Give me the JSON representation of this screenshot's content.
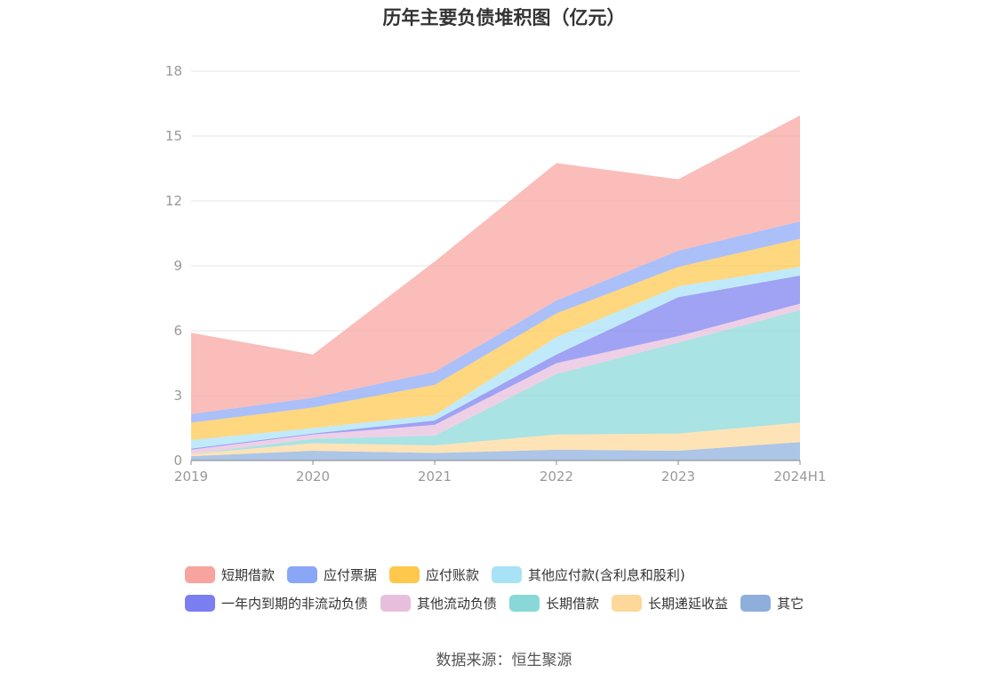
{
  "chart_data": {
    "type": "area",
    "stacked": true,
    "title": "历年主要负债堆积图（亿元）",
    "source": "数据来源：恒生聚源",
    "categories": [
      "2019",
      "2020",
      "2021",
      "2022",
      "2023",
      "2024H1"
    ],
    "ylim": [
      0,
      18
    ],
    "yticks": [
      0,
      3,
      6,
      9,
      12,
      15,
      18
    ],
    "xlabel": "",
    "ylabel": "",
    "grid": true,
    "legend_position": "bottom",
    "series": [
      {
        "name": "其它",
        "color": "#8eaedc",
        "values": [
          0.2,
          0.45,
          0.35,
          0.5,
          0.45,
          0.85
        ]
      },
      {
        "name": "长期递延收益",
        "color": "#fdd89a",
        "values": [
          0.1,
          0.35,
          0.35,
          0.7,
          0.8,
          0.9
        ]
      },
      {
        "name": "长期借款",
        "color": "#88d8d8",
        "values": [
          0.0,
          0.2,
          0.45,
          2.8,
          4.2,
          5.2
        ]
      },
      {
        "name": "其他流动负债",
        "color": "#e8bedd",
        "values": [
          0.2,
          0.2,
          0.5,
          0.5,
          0.3,
          0.3
        ]
      },
      {
        "name": "一年内到期的非流动负债",
        "color": "#7b7ef0",
        "values": [
          0.05,
          0.05,
          0.2,
          0.4,
          1.8,
          1.3
        ]
      },
      {
        "name": "其他应付款(含利息和股利)",
        "color": "#a8e2f6",
        "values": [
          0.4,
          0.25,
          0.25,
          0.8,
          0.5,
          0.4
        ]
      },
      {
        "name": "应付账款",
        "color": "#fdc84c",
        "values": [
          0.8,
          0.95,
          1.4,
          1.1,
          0.9,
          1.3
        ]
      },
      {
        "name": "应付票据",
        "color": "#8aa6f6",
        "values": [
          0.4,
          0.45,
          0.6,
          0.6,
          0.75,
          0.8
        ]
      },
      {
        "name": "短期借款",
        "color": "#f8a49e",
        "values": [
          3.75,
          2.0,
          5.1,
          6.35,
          3.3,
          4.9
        ]
      }
    ],
    "legend": [
      "短期借款",
      "应付票据",
      "应付账款",
      "其他应付款(含利息和股利)",
      "一年内到期的非流动负债",
      "其他流动负债",
      "长期借款",
      "长期递延收益",
      "其它"
    ]
  }
}
